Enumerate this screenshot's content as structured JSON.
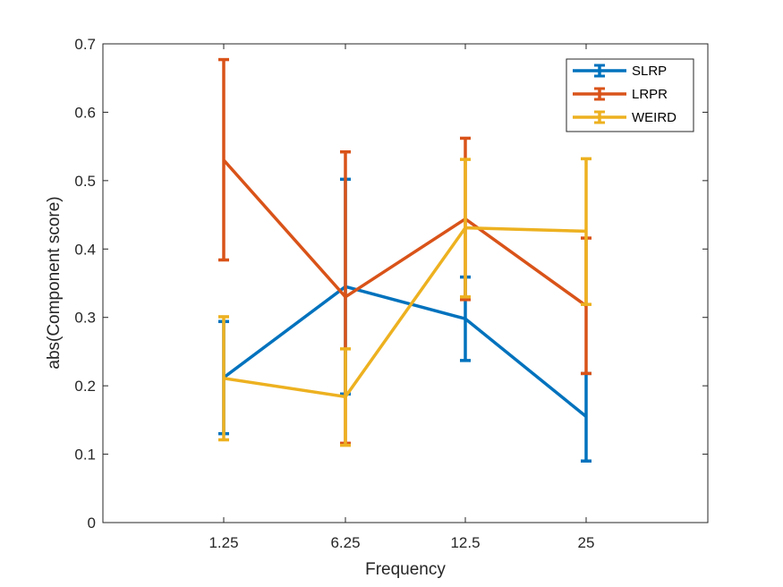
{
  "chart_data": {
    "type": "line",
    "title": "",
    "xlabel": "Frequency",
    "ylabel": "abs(Component score)",
    "categories": [
      "1.25",
      "6.25",
      "12.5",
      "25"
    ],
    "ylim": [
      0,
      0.7
    ],
    "yticks": [
      "0",
      "0.1",
      "0.2",
      "0.3",
      "0.4",
      "0.5",
      "0.6",
      "0.7"
    ],
    "grid": false,
    "legend_position": "top-right",
    "series": [
      {
        "name": "SLRP",
        "color": "#0072BD",
        "values": [
          0.212,
          0.345,
          0.298,
          0.155
        ],
        "err_low": [
          0.13,
          0.188,
          0.237,
          0.09
        ],
        "err_high": [
          0.294,
          0.502,
          0.359,
          0.218
        ]
      },
      {
        "name": "LRPR",
        "color": "#D95319",
        "values": [
          0.53,
          0.33,
          0.444,
          0.317
        ],
        "err_low": [
          0.384,
          0.116,
          0.326,
          0.218
        ],
        "err_high": [
          0.677,
          0.542,
          0.562,
          0.416
        ]
      },
      {
        "name": "WEIRD",
        "color": "#EDB120",
        "values": [
          0.211,
          0.184,
          0.431,
          0.426
        ],
        "err_low": [
          0.121,
          0.113,
          0.33,
          0.319
        ],
        "err_high": [
          0.301,
          0.254,
          0.531,
          0.532
        ]
      }
    ]
  }
}
